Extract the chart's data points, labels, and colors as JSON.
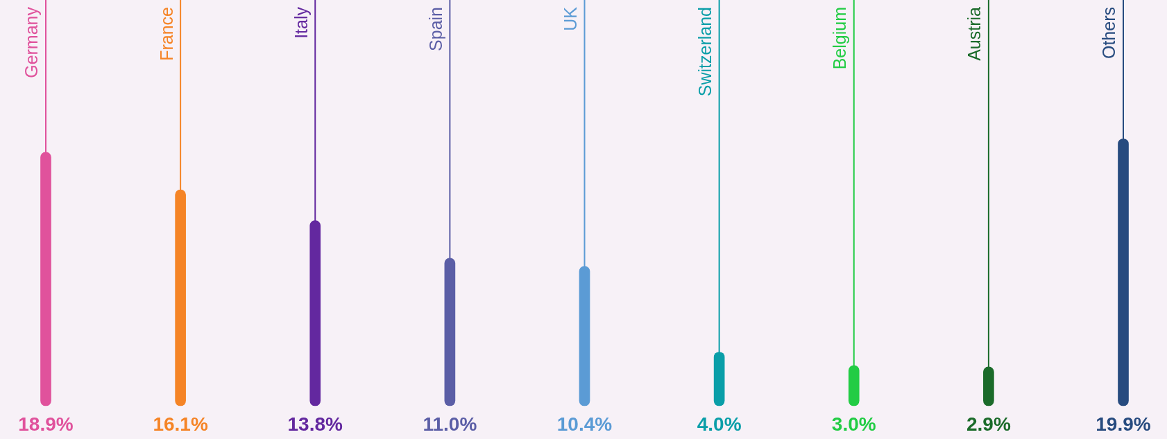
{
  "chart_data": {
    "type": "bar",
    "categories": [
      "Germany",
      "France",
      "Italy",
      "Spain",
      "UK",
      "Switzerland",
      "Belgium",
      "Austria",
      "Others"
    ],
    "values": [
      18.9,
      16.1,
      13.8,
      11.0,
      10.4,
      4.0,
      3.0,
      2.9,
      19.9
    ],
    "colors": [
      "#e0529c",
      "#f58426",
      "#63289f",
      "#5b5ea6",
      "#5b9bd5",
      "#0a9ea8",
      "#22cc44",
      "#1b6b2a",
      "#274b7f"
    ],
    "value_labels": [
      "18.9%",
      "16.1%",
      "13.8%",
      "11.0%",
      "10.4%",
      "4.0%",
      "3.0%",
      "2.9%",
      "19.9%"
    ],
    "ref_lines": [
      {
        "axis": "x",
        "value": "Germany",
        "color": "#e0529c"
      },
      {
        "axis": "x",
        "value": "France",
        "color": "#f58426"
      },
      {
        "axis": "x",
        "value": "Italy",
        "color": "#63289f"
      },
      {
        "axis": "x",
        "value": "Spain",
        "color": "#5b5ea6"
      },
      {
        "axis": "x",
        "value": "UK",
        "color": "#5b9bd5"
      },
      {
        "axis": "x",
        "value": "Switzerland",
        "color": "#0a9ea8"
      },
      {
        "axis": "x",
        "value": "Belgium",
        "color": "#22cc44"
      },
      {
        "axis": "x",
        "value": "Austria",
        "color": "#1b6b2a"
      },
      {
        "axis": "x",
        "value": "Others",
        "color": "#274b7f"
      }
    ],
    "legend": false
  }
}
